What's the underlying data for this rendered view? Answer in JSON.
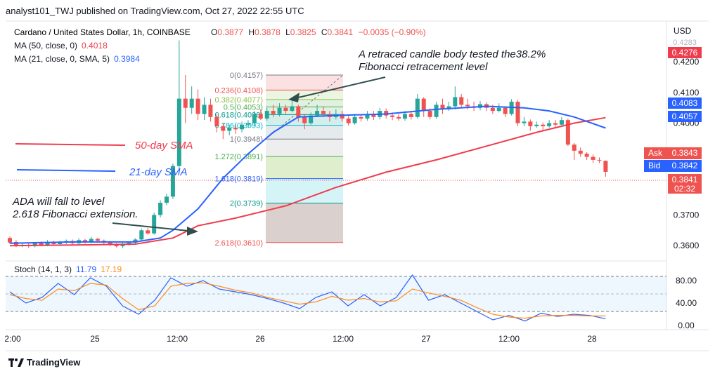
{
  "header": {
    "published": "analyst101_TWJ published on TradingView.com, Oct 27, 2022 22:55 UTC"
  },
  "symbol": {
    "name": "Cardano / United States Dollar, 1h, COINBASE",
    "o_label": "O",
    "o": "0.3877",
    "h_label": "H",
    "h": "0.3878",
    "l_label": "L",
    "l": "0.3825",
    "c_label": "C",
    "c": "0.3841",
    "change": "−0.0035 (−0.90%)"
  },
  "indicators": {
    "ma50_label": "MA (50, close, 0)",
    "ma50_value": "0.4018",
    "ma21_label": "MA (21, close, 0, SMA, 5)",
    "ma21_value": "0.3984",
    "stoch_label": "Stoch (14, 1, 3)",
    "stoch_k": "11.79",
    "stoch_d": "17.19"
  },
  "annotations": {
    "top_note_1": "A retraced candle body tested the38.2%",
    "top_note_2": "Fibonacci retracement level",
    "sma50": "50-day SMA",
    "sma21": "21-day SMA",
    "ada_1": "ADA will fall to level",
    "ada_2": "2.618 Fibonacci extension."
  },
  "price_axis": {
    "currency": "USD",
    "ticks": [
      "0.4200",
      "0.4100",
      "0.4000",
      "0.3900",
      "0.3700",
      "0.3600"
    ],
    "top_partial": "0.4283",
    "badges": {
      "red_top": "0.4276",
      "blue_a": "0.4083",
      "blue_b": "0.4057",
      "ask_label": "Ask",
      "ask": "0.3843",
      "bid_label": "Bid",
      "bid": "0.3842",
      "last": "0.3841",
      "countdown": "02:32"
    }
  },
  "stoch_axis": {
    "ticks": [
      "80.00",
      "40.00",
      "0.00"
    ]
  },
  "time_axis": {
    "labels": [
      "2:00",
      "25",
      "12:00",
      "26",
      "12:00",
      "27",
      "12:00",
      "28"
    ]
  },
  "fib_labels": [
    "0(0.4157)",
    "0.236(0.4108)",
    "0.382(0.4077)",
    "0.5(0.4053)",
    "0.618(0.4028)",
    "0.786(0.3993)",
    "1(0.3948)",
    "1.272(0.3891)",
    "1.618(0.3819)",
    "2(0.3739)",
    "2.618(0.3610)"
  ],
  "colors": {
    "up": "#26a69a",
    "down": "#ef5350",
    "ma50": "#ef3c4d",
    "ma21": "#2962ff",
    "stoch_k": "#2962ff",
    "stoch_d": "#ff8c1a",
    "accent_blue": "#2962ff"
  },
  "chart_data": {
    "type": "candlestick",
    "title": "Cardano / United States Dollar, 1h, COINBASE",
    "ylim": [
      0.355,
      0.4283
    ],
    "fib": [
      {
        "level": 0,
        "price": 0.4157
      },
      {
        "level": 0.236,
        "price": 0.4108
      },
      {
        "level": 0.382,
        "price": 0.4077
      },
      {
        "level": 0.5,
        "price": 0.4053
      },
      {
        "level": 0.618,
        "price": 0.4028
      },
      {
        "level": 0.786,
        "price": 0.3993
      },
      {
        "level": 1,
        "price": 0.3948
      },
      {
        "level": 1.272,
        "price": 0.3891
      },
      {
        "level": 1.618,
        "price": 0.3819
      },
      {
        "level": 2,
        "price": 0.3739
      },
      {
        "level": 2.618,
        "price": 0.361
      }
    ],
    "candles": [
      [
        0.3625,
        0.361,
        0.363,
        0.3605
      ],
      [
        0.3612,
        0.36,
        0.3618,
        0.3595
      ],
      [
        0.36,
        0.3603,
        0.361,
        0.3595
      ],
      [
        0.3603,
        0.3598,
        0.3608,
        0.3592
      ],
      [
        0.3598,
        0.3608,
        0.3612,
        0.3594
      ],
      [
        0.3608,
        0.3602,
        0.3614,
        0.3598
      ],
      [
        0.3602,
        0.3612,
        0.3618,
        0.3598
      ],
      [
        0.3612,
        0.3605,
        0.3616,
        0.36
      ],
      [
        0.3605,
        0.361,
        0.3616,
        0.36
      ],
      [
        0.361,
        0.3615,
        0.362,
        0.3605
      ],
      [
        0.3615,
        0.3608,
        0.362,
        0.3602
      ],
      [
        0.3608,
        0.3618,
        0.3624,
        0.3604
      ],
      [
        0.3618,
        0.3612,
        0.3622,
        0.3606
      ],
      [
        0.3612,
        0.3622,
        0.3628,
        0.3608
      ],
      [
        0.3622,
        0.3616,
        0.3626,
        0.361
      ],
      [
        0.3616,
        0.361,
        0.362,
        0.3604
      ],
      [
        0.361,
        0.3604,
        0.3615,
        0.3598
      ],
      [
        0.3604,
        0.3598,
        0.3608,
        0.3594
      ],
      [
        0.3598,
        0.3606,
        0.361,
        0.3592
      ],
      [
        0.3606,
        0.361,
        0.3614,
        0.36
      ],
      [
        0.361,
        0.362,
        0.3624,
        0.3606
      ],
      [
        0.362,
        0.365,
        0.3656,
        0.3616
      ],
      [
        0.365,
        0.364,
        0.3658,
        0.3636
      ],
      [
        0.364,
        0.37,
        0.3708,
        0.3636
      ],
      [
        0.37,
        0.374,
        0.3748,
        0.3692
      ],
      [
        0.374,
        0.376,
        0.377,
        0.3732
      ],
      [
        0.376,
        0.386,
        0.3868,
        0.3752
      ],
      [
        0.386,
        0.408,
        0.427,
        0.385
      ],
      [
        0.408,
        0.405,
        0.4157,
        0.4
      ],
      [
        0.405,
        0.408,
        0.412,
        0.403
      ],
      [
        0.408,
        0.403,
        0.411,
        0.401
      ],
      [
        0.403,
        0.406,
        0.4085,
        0.401
      ],
      [
        0.406,
        0.402,
        0.408,
        0.4005
      ],
      [
        0.402,
        0.399,
        0.403,
        0.397
      ],
      [
        0.399,
        0.3975,
        0.4,
        0.3948
      ],
      [
        0.3975,
        0.3985,
        0.3995,
        0.396
      ],
      [
        0.3985,
        0.398,
        0.3995,
        0.3965
      ],
      [
        0.398,
        0.3995,
        0.4005,
        0.397
      ],
      [
        0.3995,
        0.4,
        0.401,
        0.3985
      ],
      [
        0.4,
        0.403,
        0.404,
        0.399
      ],
      [
        0.403,
        0.4015,
        0.4045,
        0.401
      ],
      [
        0.4015,
        0.404,
        0.405,
        0.4008
      ],
      [
        0.404,
        0.403,
        0.406,
        0.402
      ],
      [
        0.403,
        0.405,
        0.4065,
        0.4022
      ],
      [
        0.405,
        0.404,
        0.406,
        0.403
      ],
      [
        0.404,
        0.4055,
        0.4077,
        0.4035
      ],
      [
        0.4055,
        0.402,
        0.406,
        0.4005
      ],
      [
        0.402,
        0.4,
        0.403,
        0.398
      ],
      [
        0.4,
        0.4025,
        0.4035,
        0.3995
      ],
      [
        0.4025,
        0.404,
        0.406,
        0.402
      ],
      [
        0.404,
        0.403,
        0.4055,
        0.402
      ],
      [
        0.403,
        0.402,
        0.404,
        0.4005
      ],
      [
        0.402,
        0.403,
        0.4045,
        0.4012
      ],
      [
        0.403,
        0.4015,
        0.404,
        0.4005
      ],
      [
        0.4015,
        0.4,
        0.4025,
        0.3992
      ],
      [
        0.4,
        0.402,
        0.403,
        0.3995
      ],
      [
        0.402,
        0.4015,
        0.403,
        0.4005
      ],
      [
        0.4015,
        0.403,
        0.404,
        0.4008
      ],
      [
        0.403,
        0.402,
        0.404,
        0.401
      ],
      [
        0.402,
        0.404,
        0.405,
        0.4012
      ],
      [
        0.404,
        0.4025,
        0.4048,
        0.4015
      ],
      [
        0.4025,
        0.402,
        0.4035,
        0.401
      ],
      [
        0.402,
        0.4015,
        0.403,
        0.4008
      ],
      [
        0.4015,
        0.403,
        0.404,
        0.4008
      ],
      [
        0.403,
        0.402,
        0.404,
        0.4012
      ],
      [
        0.402,
        0.408,
        0.4095,
        0.4015
      ],
      [
        0.408,
        0.404,
        0.4085,
        0.402
      ],
      [
        0.404,
        0.402,
        0.4048,
        0.4012
      ],
      [
        0.402,
        0.406,
        0.407,
        0.4015
      ],
      [
        0.406,
        0.4045,
        0.408,
        0.403
      ],
      [
        0.4045,
        0.4055,
        0.407,
        0.404
      ],
      [
        0.4055,
        0.4085,
        0.412,
        0.4045
      ],
      [
        0.4085,
        0.406,
        0.4095,
        0.405
      ],
      [
        0.406,
        0.4055,
        0.408,
        0.4045
      ],
      [
        0.4055,
        0.405,
        0.407,
        0.404
      ],
      [
        0.405,
        0.4062,
        0.4072,
        0.4042
      ],
      [
        0.4062,
        0.405,
        0.4068,
        0.404
      ],
      [
        0.405,
        0.404,
        0.406,
        0.403
      ],
      [
        0.404,
        0.405,
        0.4065,
        0.4035
      ],
      [
        0.405,
        0.403,
        0.4055,
        0.402
      ],
      [
        0.403,
        0.407,
        0.4078,
        0.4025
      ],
      [
        0.407,
        0.4,
        0.4076,
        0.399
      ],
      [
        0.4,
        0.4005,
        0.402,
        0.399
      ],
      [
        0.4005,
        0.399,
        0.4012,
        0.3975
      ],
      [
        0.399,
        0.3995,
        0.4005,
        0.3985
      ],
      [
        0.3995,
        0.399,
        0.4002,
        0.3975
      ],
      [
        0.399,
        0.4,
        0.401,
        0.3985
      ],
      [
        0.4,
        0.3995,
        0.401,
        0.3988
      ],
      [
        0.3995,
        0.401,
        0.402,
        0.399
      ],
      [
        0.401,
        0.393,
        0.4015,
        0.3925
      ],
      [
        0.393,
        0.391,
        0.3935,
        0.388
      ],
      [
        0.391,
        0.39,
        0.392,
        0.389
      ],
      [
        0.39,
        0.389,
        0.3905,
        0.388
      ],
      [
        0.389,
        0.388,
        0.3898,
        0.387
      ],
      [
        0.388,
        0.3878,
        0.3888,
        0.387
      ],
      [
        0.3877,
        0.3841,
        0.3878,
        0.3825
      ]
    ],
    "ma50": [
      [
        0,
        0.36
      ],
      [
        10,
        0.3602
      ],
      [
        20,
        0.3605
      ],
      [
        26,
        0.3625
      ],
      [
        30,
        0.3665
      ],
      [
        36,
        0.369
      ],
      [
        44,
        0.373
      ],
      [
        52,
        0.379
      ],
      [
        60,
        0.384
      ],
      [
        68,
        0.388
      ],
      [
        76,
        0.3925
      ],
      [
        84,
        0.397
      ],
      [
        90,
        0.4
      ],
      [
        95,
        0.4018
      ]
    ],
    "ma21": [
      [
        0,
        0.3608
      ],
      [
        10,
        0.3612
      ],
      [
        20,
        0.3612
      ],
      [
        24,
        0.3625
      ],
      [
        26,
        0.365
      ],
      [
        30,
        0.372
      ],
      [
        34,
        0.382
      ],
      [
        38,
        0.39
      ],
      [
        42,
        0.397
      ],
      [
        46,
        0.402
      ],
      [
        52,
        0.4025
      ],
      [
        60,
        0.403
      ],
      [
        68,
        0.4045
      ],
      [
        76,
        0.4055
      ],
      [
        82,
        0.405
      ],
      [
        86,
        0.404
      ],
      [
        90,
        0.402
      ],
      [
        95,
        0.3984
      ]
    ],
    "stoch_k": [
      [
        0,
        60
      ],
      [
        4,
        40
      ],
      [
        8,
        50
      ],
      [
        12,
        75
      ],
      [
        16,
        55
      ],
      [
        20,
        85
      ],
      [
        24,
        70
      ],
      [
        28,
        35
      ],
      [
        32,
        20
      ],
      [
        36,
        45
      ],
      [
        40,
        85
      ],
      [
        44,
        70
      ],
      [
        48,
        80
      ],
      [
        52,
        65
      ],
      [
        56,
        60
      ],
      [
        60,
        55
      ],
      [
        64,
        48
      ],
      [
        68,
        40
      ],
      [
        72,
        30
      ],
      [
        76,
        50
      ],
      [
        80,
        60
      ],
      [
        84,
        35
      ],
      [
        88,
        55
      ],
      [
        92,
        35
      ],
      [
        96,
        50
      ],
      [
        100,
        90
      ],
      [
        104,
        45
      ],
      [
        108,
        55
      ],
      [
        112,
        40
      ],
      [
        116,
        25
      ],
      [
        120,
        10
      ],
      [
        124,
        18
      ],
      [
        128,
        8
      ],
      [
        132,
        22
      ],
      [
        136,
        16
      ],
      [
        140,
        20
      ],
      [
        144,
        18
      ],
      [
        148,
        12
      ]
    ],
    "stoch_d": [
      [
        0,
        55
      ],
      [
        4,
        48
      ],
      [
        8,
        45
      ],
      [
        12,
        65
      ],
      [
        16,
        62
      ],
      [
        20,
        75
      ],
      [
        24,
        72
      ],
      [
        28,
        48
      ],
      [
        32,
        28
      ],
      [
        36,
        35
      ],
      [
        40,
        70
      ],
      [
        44,
        75
      ],
      [
        48,
        76
      ],
      [
        52,
        70
      ],
      [
        56,
        63
      ],
      [
        60,
        58
      ],
      [
        64,
        50
      ],
      [
        68,
        44
      ],
      [
        72,
        38
      ],
      [
        76,
        42
      ],
      [
        80,
        52
      ],
      [
        84,
        45
      ],
      [
        88,
        48
      ],
      [
        92,
        42
      ],
      [
        96,
        44
      ],
      [
        100,
        65
      ],
      [
        104,
        58
      ],
      [
        108,
        52
      ],
      [
        112,
        45
      ],
      [
        116,
        32
      ],
      [
        120,
        20
      ],
      [
        124,
        15
      ],
      [
        128,
        13
      ],
      [
        132,
        17
      ],
      [
        136,
        18
      ],
      [
        140,
        18
      ],
      [
        144,
        17
      ],
      [
        148,
        17
      ]
    ]
  }
}
